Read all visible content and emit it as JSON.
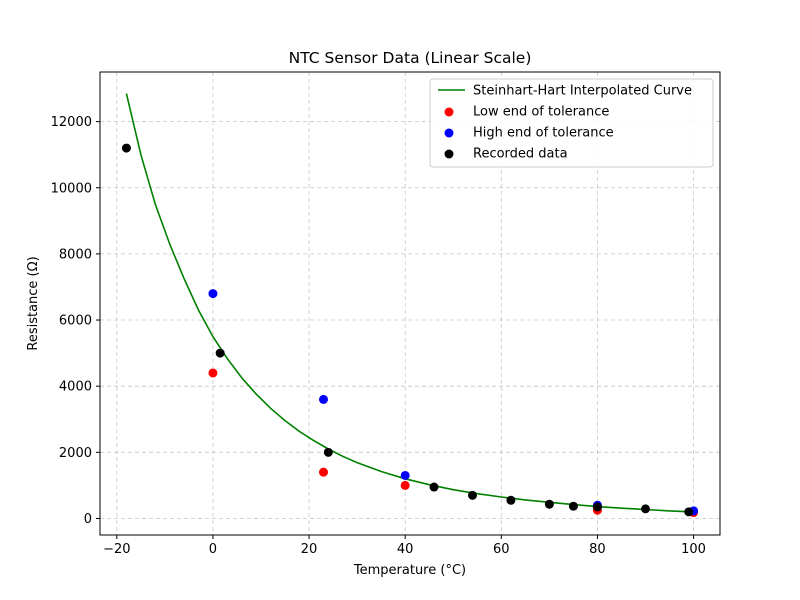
{
  "chart_data": {
    "type": "scatter",
    "title": "NTC Sensor Data (Linear Scale)",
    "xlabel": "Temperature (°C)",
    "ylabel": "Resistance (Ω)",
    "xlim": [
      -23.5,
      105.5
    ],
    "ylim": [
      -500,
      13500
    ],
    "xticks": [
      -20,
      0,
      20,
      40,
      60,
      80,
      100
    ],
    "yticks": [
      0,
      2000,
      4000,
      6000,
      8000,
      10000,
      12000
    ],
    "grid": true,
    "legend_position": "top-right",
    "series": [
      {
        "name": "Steinhart-Hart Interpolated Curve",
        "kind": "line",
        "color": "#008000",
        "x": [
          -18,
          -15,
          -12,
          -9,
          -6,
          -3,
          0,
          3,
          6,
          9,
          12,
          15,
          18,
          21,
          24,
          27,
          30,
          35,
          40,
          45,
          50,
          55,
          60,
          65,
          70,
          75,
          80,
          85,
          90,
          95,
          100
        ],
        "y": [
          12850,
          11000,
          9500,
          8300,
          7250,
          6300,
          5500,
          4830,
          4250,
          3760,
          3330,
          2960,
          2630,
          2350,
          2100,
          1880,
          1690,
          1420,
          1200,
          1020,
          870,
          750,
          650,
          560,
          490,
          420,
          360,
          310,
          270,
          230,
          200
        ]
      },
      {
        "name": "Low end of tolerance",
        "kind": "scatter",
        "color": "#ff0000",
        "x": [
          0,
          23,
          40,
          80,
          100
        ],
        "y": [
          4400,
          1400,
          1000,
          250,
          180
        ]
      },
      {
        "name": "High end of tolerance",
        "kind": "scatter",
        "color": "#0000ff",
        "x": [
          0,
          23,
          40,
          80,
          100
        ],
        "y": [
          6800,
          3600,
          1300,
          400,
          230
        ]
      },
      {
        "name": "Recorded data",
        "kind": "scatter",
        "color": "#000000",
        "x": [
          -18,
          1.5,
          24,
          46,
          54,
          62,
          70,
          75,
          80,
          90,
          99
        ],
        "y": [
          11200,
          5000,
          2000,
          950,
          700,
          550,
          430,
          370,
          350,
          290,
          200
        ]
      }
    ]
  }
}
